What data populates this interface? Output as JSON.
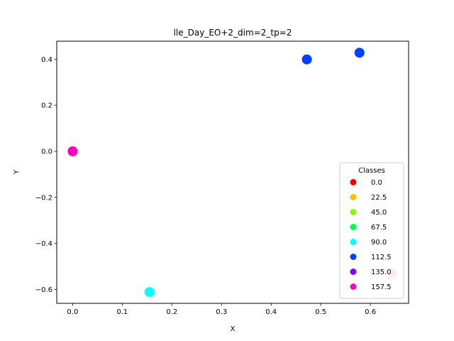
{
  "chart_data": {
    "type": "scatter",
    "title": "lle_Day_EO+2_dim=2_tp=2",
    "xlabel": "X",
    "ylabel": "Y",
    "xlim": [
      -0.032,
      0.677
    ],
    "ylim": [
      -0.66,
      0.478
    ],
    "xticks": [
      0.0,
      0.1,
      0.2,
      0.3,
      0.4,
      0.5,
      0.6
    ],
    "xtick_labels": [
      "0.0",
      "0.1",
      "0.2",
      "0.3",
      "0.4",
      "0.5",
      "0.6"
    ],
    "yticks": [
      -0.6,
      -0.4,
      -0.2,
      0.0,
      0.2,
      0.4
    ],
    "ytick_labels": [
      "−0.6",
      "−0.4",
      "−0.2",
      "0.0",
      "0.2",
      "0.4"
    ],
    "grid": false,
    "legend": {
      "title": "Classes",
      "placement": "lower-right",
      "entries": [
        {
          "label": "0.0",
          "color": "#ff0000"
        },
        {
          "label": "22.5",
          "color": "#ffbf00"
        },
        {
          "label": "45.0",
          "color": "#80ff00"
        },
        {
          "label": "67.5",
          "color": "#00ff40"
        },
        {
          "label": "90.0",
          "color": "#00ffff"
        },
        {
          "label": "112.5",
          "color": "#0040ff"
        },
        {
          "label": "135.0",
          "color": "#7f00ff"
        },
        {
          "label": "157.5",
          "color": "#ff00bf"
        }
      ]
    },
    "points": [
      {
        "x": 0.0,
        "y": 0.0,
        "color": "#ff00bf"
      },
      {
        "x": 0.155,
        "y": -0.611,
        "color": "#00ffff"
      },
      {
        "x": 0.472,
        "y": 0.399,
        "color": "#0040ff"
      },
      {
        "x": 0.578,
        "y": 0.428,
        "color": "#0040ff"
      },
      {
        "x": 0.643,
        "y": -0.53,
        "color": "#ff9999"
      }
    ]
  }
}
